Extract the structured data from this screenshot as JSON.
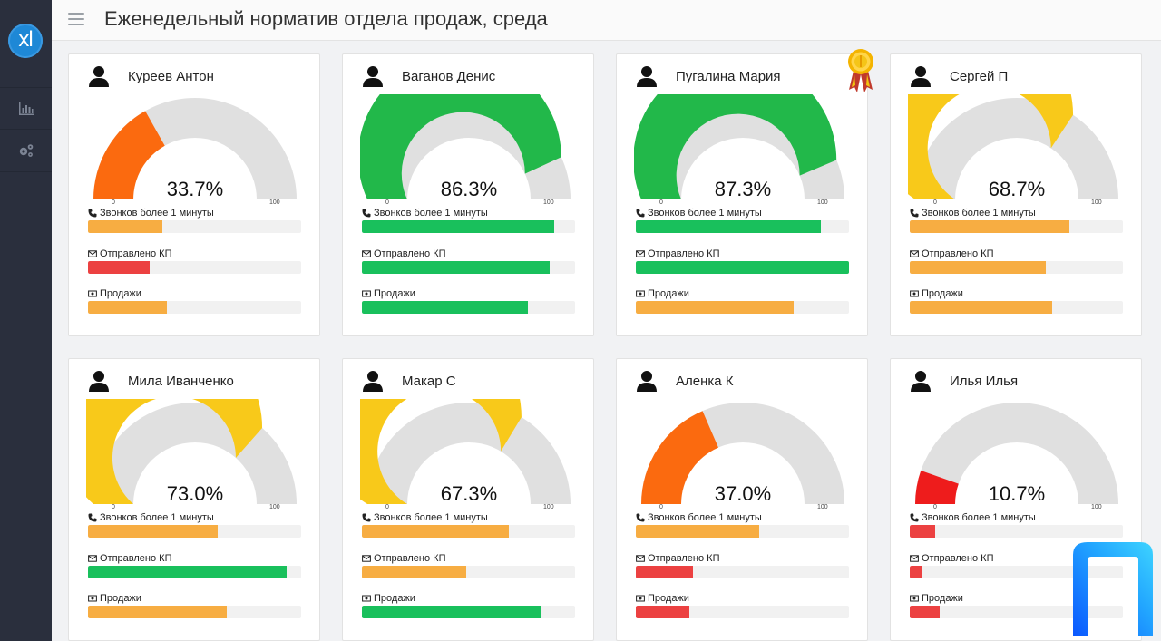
{
  "app": {
    "logo_text": "xl",
    "title": "Еженедельный норматив отдела продаж, среда"
  },
  "sidebar": {
    "items": [
      {
        "icon": "bar-chart-icon"
      },
      {
        "icon": "gears-icon"
      }
    ]
  },
  "labels": {
    "calls": "Звонков более 1 минуты",
    "offers": "Отправлено КП",
    "sales": "Продажи",
    "tick_min": "0",
    "tick_max": "100"
  },
  "colors": {
    "green": "#22b84a",
    "yellow": "#f8c91a",
    "orange": "#fb6a0f",
    "red": "#ee1c1c",
    "bar_orange": "#f7ad42",
    "bar_green": "#19c05c",
    "bar_red": "#ec4141",
    "gauge_bg": "#e0e0e0"
  },
  "employees": [
    {
      "name": "Куреев Антон",
      "percent_label": "33.7%",
      "value": 33.7,
      "gauge_color": "#fb6a0f",
      "metrics": [
        {
          "value": 0.35,
          "color": "#f7ad42"
        },
        {
          "value": 0.29,
          "color": "#ec4141"
        },
        {
          "value": 0.37,
          "color": "#f7ad42"
        }
      ]
    },
    {
      "name": "Ваганов Денис",
      "percent_label": "86.3%",
      "value": 86.3,
      "gauge_color": "#22b84a",
      "metrics": [
        {
          "value": 0.9,
          "color": "#19c05c"
        },
        {
          "value": 0.88,
          "color": "#19c05c"
        },
        {
          "value": 0.78,
          "color": "#19c05c"
        }
      ]
    },
    {
      "name": "Пугалина Мария",
      "percent_label": "87.3%",
      "value": 87.3,
      "gauge_color": "#22b84a",
      "award": true,
      "metrics": [
        {
          "value": 0.87,
          "color": "#19c05c"
        },
        {
          "value": 1.0,
          "color": "#19c05c"
        },
        {
          "value": 0.74,
          "color": "#f7ad42"
        }
      ]
    },
    {
      "name": "Сергей П",
      "percent_label": "68.7%",
      "value": 68.7,
      "gauge_color": "#f8c91a",
      "metrics": [
        {
          "value": 0.75,
          "color": "#f7ad42"
        },
        {
          "value": 0.64,
          "color": "#f7ad42"
        },
        {
          "value": 0.67,
          "color": "#f7ad42"
        }
      ]
    },
    {
      "name": "Мила Иванченко",
      "percent_label": "73.0%",
      "value": 73.0,
      "gauge_color": "#f8c91a",
      "metrics": [
        {
          "value": 0.61,
          "color": "#f7ad42"
        },
        {
          "value": 0.93,
          "color": "#19c05c"
        },
        {
          "value": 0.65,
          "color": "#f7ad42"
        }
      ]
    },
    {
      "name": "Макар С",
      "percent_label": "67.3%",
      "value": 67.3,
      "gauge_color": "#f8c91a",
      "metrics": [
        {
          "value": 0.69,
          "color": "#f7ad42"
        },
        {
          "value": 0.49,
          "color": "#f7ad42"
        },
        {
          "value": 0.84,
          "color": "#19c05c"
        }
      ]
    },
    {
      "name": "Аленка К",
      "percent_label": "37.0%",
      "value": 37.0,
      "gauge_color": "#fb6a0f",
      "metrics": [
        {
          "value": 0.58,
          "color": "#f7ad42"
        },
        {
          "value": 0.27,
          "color": "#ec4141"
        },
        {
          "value": 0.25,
          "color": "#ec4141"
        }
      ]
    },
    {
      "name": "Илья Илья",
      "percent_label": "10.7%",
      "value": 10.7,
      "gauge_color": "#ee1c1c",
      "metrics": [
        {
          "value": 0.12,
          "color": "#ec4141"
        },
        {
          "value": 0.06,
          "color": "#ec4141"
        },
        {
          "value": 0.14,
          "color": "#ec4141"
        }
      ]
    }
  ]
}
